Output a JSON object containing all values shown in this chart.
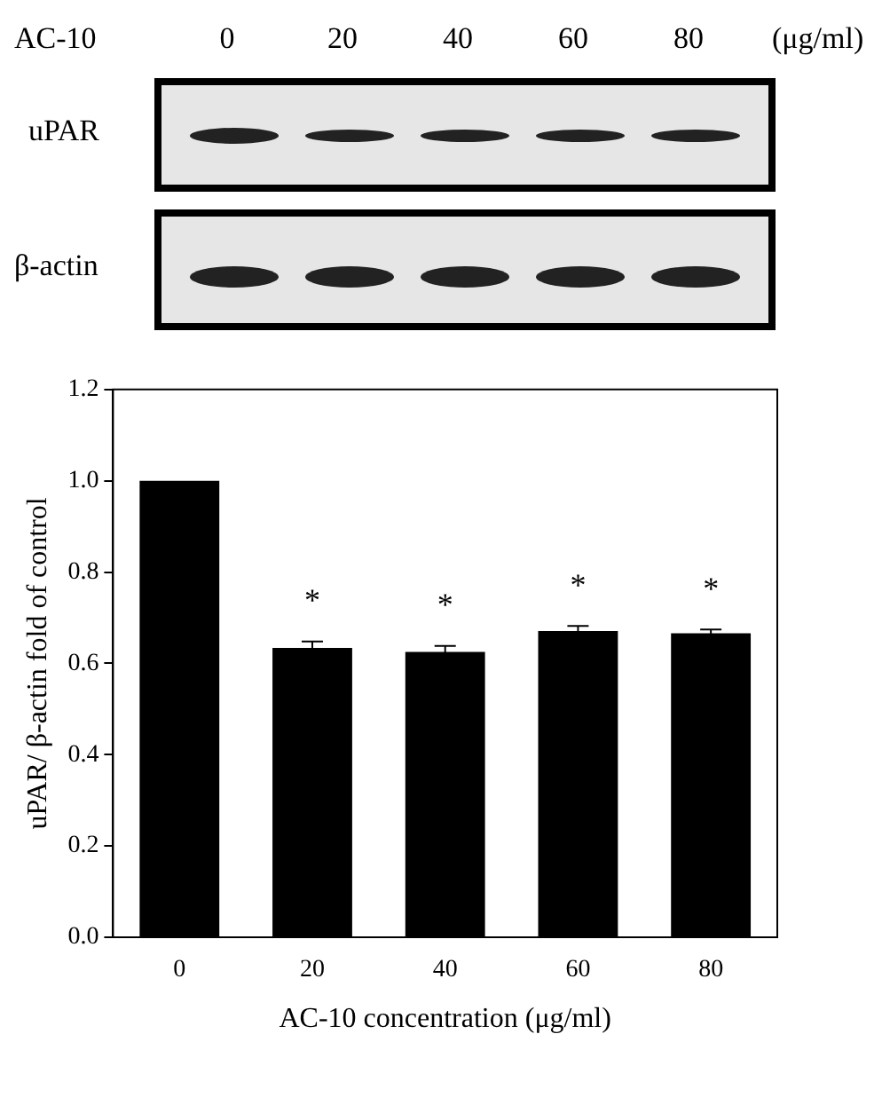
{
  "chart_data": {
    "type": "bar",
    "xlabel": "AC-10 concentration (μg/ml)",
    "ylabel": "uPAR/ β-actin fold of control",
    "categories": [
      "0",
      "20",
      "40",
      "60",
      "80"
    ],
    "values": [
      1.0,
      0.634,
      0.625,
      0.671,
      0.666
    ],
    "errors": [
      null,
      0.014,
      0.013,
      0.011,
      0.008
    ],
    "color": "#000000",
    "ylim": [
      0,
      1.2
    ],
    "yticks": [
      {
        "value": 0,
        "label": "0.0"
      },
      {
        "value": 0.2,
        "label": "0.2"
      },
      {
        "value": 0.4,
        "label": "0.4"
      },
      {
        "value": 0.6,
        "label": "0.6"
      },
      {
        "value": 0.8,
        "label": "0.8"
      },
      {
        "value": 1.0,
        "label": "1.0"
      },
      {
        "value": 1.2,
        "label": "1.2"
      }
    ],
    "grid": false,
    "legend": false,
    "annotations": [
      "AC-10",
      "(μg/ml)",
      "uPAR",
      "β-actin",
      {
        "text": "*",
        "x": "20",
        "y": 0.634
      },
      {
        "text": "*",
        "x": "40",
        "y": 0.625
      },
      {
        "text": "*",
        "x": "60",
        "y": 0.671
      },
      {
        "text": "*",
        "x": "80",
        "y": 0.666
      }
    ]
  }
}
